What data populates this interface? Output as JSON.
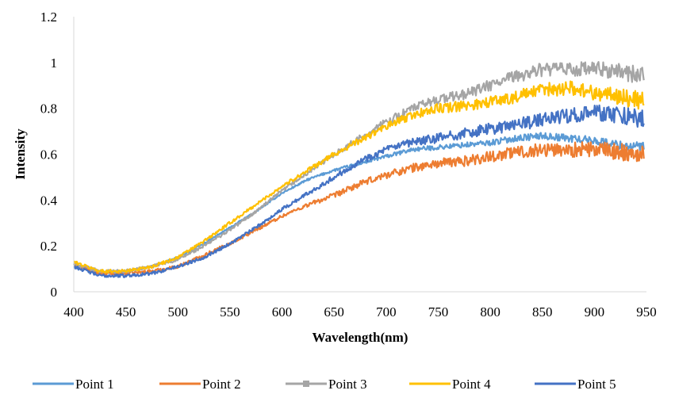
{
  "chart_data": {
    "type": "line",
    "title": "",
    "xlabel": "Wavelength(nm)",
    "ylabel": "Intensity",
    "xlim": [
      400,
      950
    ],
    "ylim": [
      0,
      1.2
    ],
    "x_ticks": [
      "400",
      "450",
      "500",
      "550",
      "600",
      "650",
      "700",
      "750",
      "800",
      "850",
      "900",
      "950"
    ],
    "y_ticks": [
      "0",
      "0.2",
      "0.4",
      "0.6",
      "0.8",
      "1",
      "1.2"
    ],
    "grid": false,
    "legend_position": "bottom",
    "x": [
      400,
      425,
      450,
      475,
      500,
      525,
      550,
      575,
      600,
      625,
      650,
      675,
      700,
      725,
      750,
      775,
      800,
      825,
      850,
      875,
      900,
      925,
      950
    ],
    "series": [
      {
        "name": "Point 1",
        "color": "#5B9BD5",
        "marker": "none",
        "noise": 0.01,
        "values": [
          0.12,
          0.08,
          0.09,
          0.11,
          0.15,
          0.21,
          0.28,
          0.35,
          0.43,
          0.49,
          0.53,
          0.56,
          0.59,
          0.62,
          0.63,
          0.64,
          0.65,
          0.67,
          0.68,
          0.67,
          0.66,
          0.64,
          0.63
        ]
      },
      {
        "name": "Point 2",
        "color": "#ED7D31",
        "marker": "none",
        "noise": 0.02,
        "values": [
          0.12,
          0.08,
          0.08,
          0.09,
          0.11,
          0.16,
          0.21,
          0.27,
          0.33,
          0.38,
          0.42,
          0.47,
          0.51,
          0.54,
          0.56,
          0.57,
          0.59,
          0.61,
          0.62,
          0.62,
          0.62,
          0.61,
          0.6
        ]
      },
      {
        "name": "Point 3",
        "color": "#A5A5A5",
        "marker": "square",
        "noise": 0.02,
        "values": [
          0.12,
          0.09,
          0.09,
          0.11,
          0.14,
          0.2,
          0.27,
          0.35,
          0.44,
          0.52,
          0.6,
          0.67,
          0.74,
          0.8,
          0.84,
          0.86,
          0.9,
          0.94,
          0.97,
          0.97,
          0.97,
          0.96,
          0.94
        ]
      },
      {
        "name": "Point 4",
        "color": "#FFC000",
        "marker": "none",
        "noise": 0.02,
        "values": [
          0.13,
          0.09,
          0.09,
          0.11,
          0.15,
          0.22,
          0.3,
          0.38,
          0.46,
          0.53,
          0.6,
          0.66,
          0.72,
          0.77,
          0.8,
          0.81,
          0.83,
          0.85,
          0.88,
          0.89,
          0.87,
          0.85,
          0.83
        ]
      },
      {
        "name": "Point 5",
        "color": "#4472C4",
        "marker": "none",
        "noise": 0.02,
        "values": [
          0.11,
          0.07,
          0.07,
          0.08,
          0.11,
          0.15,
          0.21,
          0.28,
          0.36,
          0.43,
          0.5,
          0.57,
          0.62,
          0.65,
          0.67,
          0.69,
          0.71,
          0.73,
          0.75,
          0.77,
          0.78,
          0.77,
          0.75
        ]
      }
    ]
  }
}
